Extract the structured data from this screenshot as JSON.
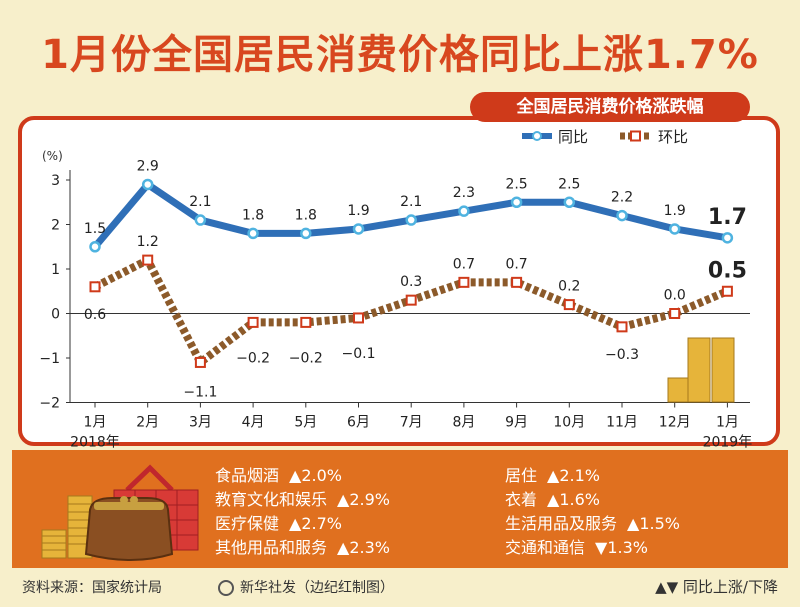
{
  "title": "1月份全国居民消费价格同比上涨1.7%",
  "subtitle": "全国居民消费价格涨跌幅",
  "colors": {
    "yoy": "#2f6fb7",
    "mom": "#8c5a2a",
    "accent": "#cf3a1a",
    "band": "#e0701f"
  },
  "chart_data": {
    "type": "line",
    "ylabel": "(%)",
    "ylim": [
      -2,
      3
    ],
    "yticks": [
      "3",
      "2",
      "1",
      "0",
      "−1",
      "−2"
    ],
    "categories": [
      "1月",
      "2月",
      "3月",
      "4月",
      "5月",
      "6月",
      "7月",
      "8月",
      "9月",
      "10月",
      "11月",
      "12月",
      "1月"
    ],
    "year_labels": {
      "first": "2018年",
      "last": "2019年"
    },
    "legend": [
      "同比",
      "环比"
    ],
    "series": [
      {
        "name": "同比",
        "values": [
          1.5,
          2.9,
          2.1,
          1.8,
          1.8,
          1.9,
          2.1,
          2.3,
          2.5,
          2.5,
          2.2,
          1.9,
          1.7
        ],
        "labels": [
          "1.5",
          "2.9",
          "2.1",
          "1.8",
          "1.8",
          "1.9",
          "2.1",
          "2.3",
          "2.5",
          "2.5",
          "2.2",
          "1.9",
          "1.7"
        ]
      },
      {
        "name": "环比",
        "values": [
          0.6,
          1.2,
          -1.1,
          -0.2,
          -0.2,
          -0.1,
          0.3,
          0.7,
          0.7,
          0.2,
          -0.3,
          0.0,
          0.5
        ],
        "labels": [
          "0.6",
          "1.2",
          "−1.1",
          "−0.2",
          "−0.2",
          "−0.1",
          "0.3",
          "0.7",
          "0.7",
          "0.2",
          "−0.3",
          "0.0",
          "0.5"
        ]
      }
    ]
  },
  "categories_panel": [
    {
      "label": "食品烟酒",
      "value": "▲2.0%"
    },
    {
      "label": "教育文化和娱乐",
      "value": "▲2.9%"
    },
    {
      "label": "医疗保健",
      "value": "▲2.7%"
    },
    {
      "label": "其他用品和服务",
      "value": "▲2.3%"
    },
    {
      "label": "居住",
      "value": "▲2.1%"
    },
    {
      "label": "衣着",
      "value": "▲1.6%"
    },
    {
      "label": "生活用品及服务",
      "value": "▲1.5%"
    },
    {
      "label": "交通和通信",
      "value": "▼1.3%"
    }
  ],
  "footer": {
    "source": "资料来源：国家统计局",
    "credit": "新华社发（边纪红制图）",
    "note": "▲▼ 同比上涨/下降"
  }
}
